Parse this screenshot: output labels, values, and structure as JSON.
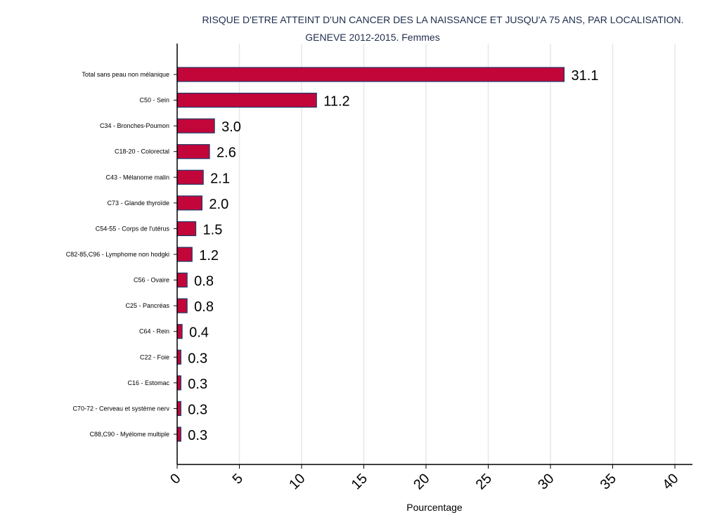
{
  "chart_data": {
    "type": "bar",
    "orientation": "horizontal",
    "title": "RISQUE D'ETRE ATTEINT D'UN CANCER DES LA NAISSANCE ET JUSQU'A 75 ANS, PAR LOCALISATION.",
    "subtitle": "GENEVE 2012-2015. Femmes",
    "xlabel": "Pourcentage",
    "xlim": [
      0,
      40
    ],
    "xticks": [
      0,
      5,
      10,
      15,
      20,
      25,
      30,
      35,
      40
    ],
    "grid": true,
    "bar_color": "#c2063a",
    "bar_edge_color": "#1f3b6b",
    "categories": [
      "Total sans peau non mélanique",
      "C50 - Sein",
      "C34 - Bronches-Poumon",
      "C18-20 - Colorectal",
      "C43 - Mélanome malin",
      "C73 - Glande thyroïde",
      "C54-55 - Corps de l'utérus",
      "C82-85,C96 - Lymphome non hodgki",
      "C56 - Ovaire",
      "C25 - Pancréas",
      "C64 - Rein",
      "C22 - Foie",
      "C16 - Estomac",
      "C70-72 - Cerveau et système nerv",
      "C88,C90 - Myélome multiple"
    ],
    "values": [
      31.1,
      11.2,
      3.0,
      2.6,
      2.1,
      2.0,
      1.5,
      1.2,
      0.8,
      0.8,
      0.4,
      0.3,
      0.3,
      0.3,
      0.3
    ],
    "labels": [
      "31.1",
      "11.2",
      "3.0",
      "2.6",
      "2.1",
      "2.0",
      "1.5",
      "1.2",
      "0.8",
      "0.8",
      "0.4",
      "0.3",
      "0.3",
      "0.3",
      "0.3"
    ]
  }
}
